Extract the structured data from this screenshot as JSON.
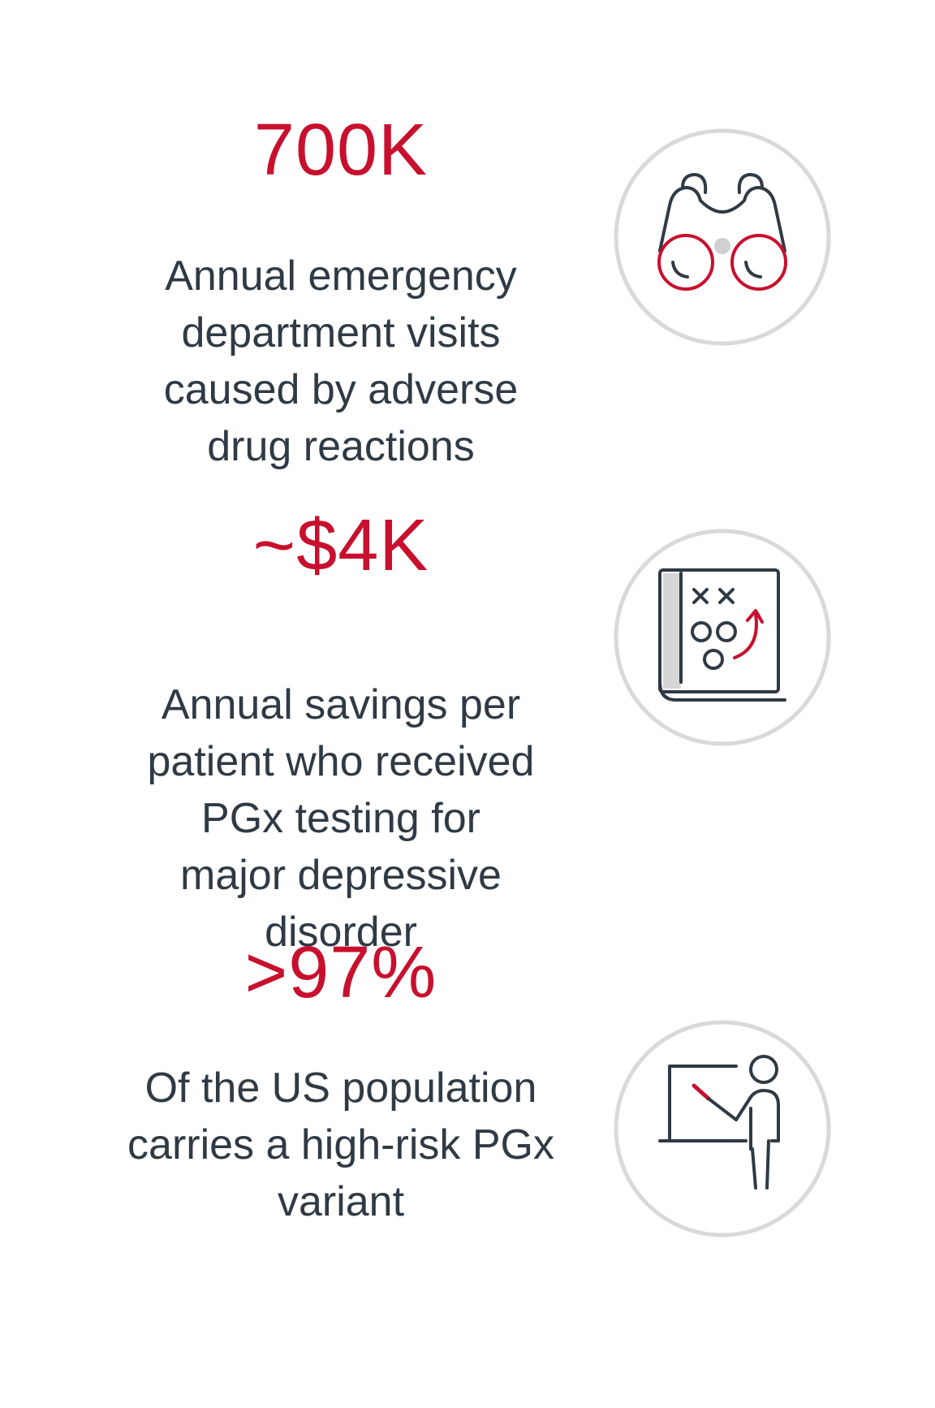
{
  "stats": [
    {
      "value": "700K",
      "lines": [
        "Annual emergency",
        "department visits",
        "caused by adverse",
        "drug reactions"
      ],
      "icon": "binoculars-icon"
    },
    {
      "value": "~$4K",
      "lines": [
        "Annual savings per",
        "patient who received",
        "PGx testing for",
        "major depressive",
        "disorder"
      ],
      "icon": "playbook-icon"
    },
    {
      "value": ">97%",
      "lines": [
        "Of the US population",
        "carries a high-risk PGx",
        "variant"
      ],
      "icon": "presenter-icon"
    }
  ],
  "colors": {
    "accent": "#c8102e",
    "text": "#2f3a45",
    "circle": "#d9d9d9",
    "icon_line": "#2f3a45"
  }
}
